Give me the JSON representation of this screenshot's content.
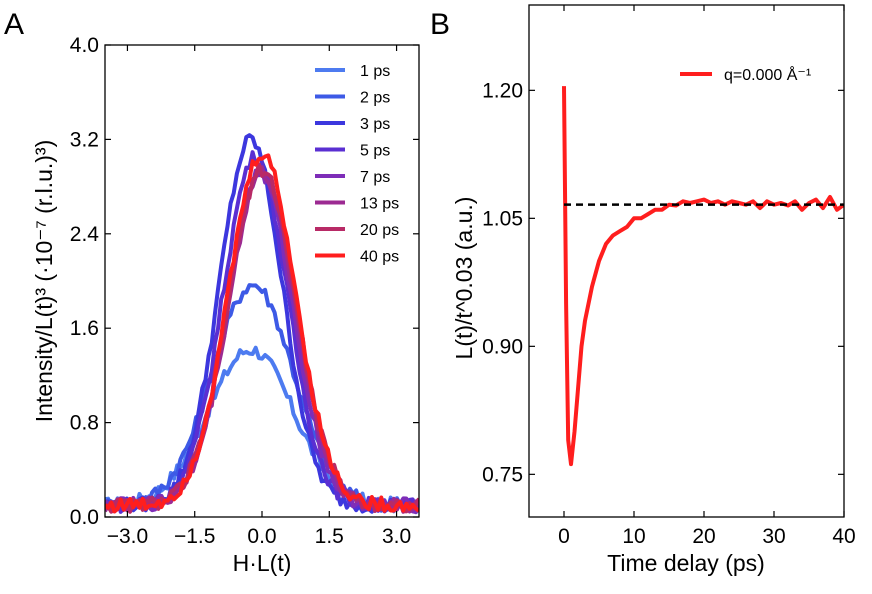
{
  "chart_data": [
    {
      "panel_label": "A",
      "type": "line",
      "xlabel": "H·L(t)",
      "ylabel": "Intensity/L(t)³ (·10⁻⁷ (r.l.u.)³)",
      "xlim": [
        -3.5,
        3.5
      ],
      "ylim": [
        0.0,
        4.0
      ],
      "xticks": [
        "−3.0",
        "−1.5",
        "0.0",
        "1.5",
        "3.0"
      ],
      "yticks": [
        "0.0",
        "0.8",
        "1.6",
        "2.4",
        "3.2",
        "4.0"
      ],
      "legend_location": "top-right",
      "series": [
        {
          "name": "1 ps",
          "color": "#4d7bf0",
          "amplitude": 1.32,
          "center": -0.25,
          "width": 0.95,
          "baseline": 0.1
        },
        {
          "name": "2 ps",
          "color": "#3d5ae6",
          "amplitude": 1.87,
          "center": -0.2,
          "width": 0.9,
          "baseline": 0.1
        },
        {
          "name": "3 ps",
          "color": "#3c37de",
          "amplitude": 3.1,
          "center": -0.25,
          "width": 0.7,
          "baseline": 0.1
        },
        {
          "name": "5 ps",
          "color": "#5a2fd2",
          "amplitude": 2.95,
          "center": -0.15,
          "width": 0.72,
          "baseline": 0.1
        },
        {
          "name": "7 ps",
          "color": "#7e2db8",
          "amplitude": 2.82,
          "center": -0.05,
          "width": 0.73,
          "baseline": 0.1
        },
        {
          "name": "13 ps",
          "color": "#9c2a92",
          "amplitude": 2.82,
          "center": 0.0,
          "width": 0.74,
          "baseline": 0.1
        },
        {
          "name": "20 ps",
          "color": "#b82a66",
          "amplitude": 2.85,
          "center": 0.0,
          "width": 0.75,
          "baseline": 0.1
        },
        {
          "name": "40 ps",
          "color": "#ff1e1e",
          "amplitude": 2.98,
          "center": 0.0,
          "width": 0.75,
          "baseline": 0.1
        }
      ]
    },
    {
      "panel_label": "B",
      "type": "line",
      "xlabel": "Time delay (ps)",
      "ylabel": "L(t)/t^0.03 (a.u.)",
      "xlim": [
        -5,
        40
      ],
      "ylim": [
        0.7,
        1.3
      ],
      "xticks": [
        "0",
        "10",
        "20",
        "30",
        "40"
      ],
      "yticks": [
        "0.75",
        "0.90",
        "1.05",
        "1.20"
      ],
      "legend_location": "top-right",
      "reference_line": {
        "y": 1.066,
        "style": "dashed",
        "color": "#000000"
      },
      "series": [
        {
          "name": "q=0.000 Å⁻¹",
          "color": "#ff1e1e",
          "x": [
            0.0,
            0.3,
            0.6,
            1.0,
            1.5,
            2.0,
            2.5,
            3.0,
            3.5,
            4.0,
            4.5,
            5.0,
            6.0,
            7.0,
            8.0,
            9.0,
            10.0,
            11.0,
            12.0,
            13.0,
            14.0,
            15.0,
            16.0,
            17.0,
            18.0,
            19.0,
            20.0,
            21.0,
            22.0,
            23.0,
            24.0,
            25.0,
            26.0,
            27.0,
            28.0,
            29.0,
            30.0,
            31.0,
            32.0,
            33.0,
            34.0,
            35.0,
            36.0,
            37.0,
            38.0,
            39.0,
            40.0
          ],
          "y": [
            1.205,
            0.95,
            0.79,
            0.762,
            0.8,
            0.85,
            0.9,
            0.93,
            0.95,
            0.97,
            0.985,
            1.0,
            1.02,
            1.03,
            1.035,
            1.04,
            1.05,
            1.05,
            1.055,
            1.06,
            1.06,
            1.066,
            1.065,
            1.07,
            1.068,
            1.07,
            1.072,
            1.068,
            1.07,
            1.066,
            1.07,
            1.068,
            1.066,
            1.07,
            1.062,
            1.07,
            1.066,
            1.068,
            1.065,
            1.07,
            1.06,
            1.068,
            1.072,
            1.062,
            1.075,
            1.06,
            1.066
          ]
        }
      ]
    }
  ]
}
